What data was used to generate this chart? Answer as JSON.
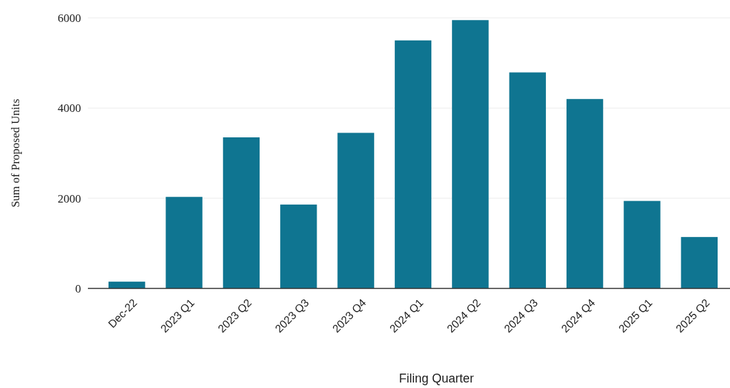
{
  "chart_data": {
    "type": "bar",
    "xlabel": "Filing Quarter",
    "ylabel": "Sum of Proposed Units",
    "categories": [
      "Dec-22",
      "2023 Q1",
      "2023 Q2",
      "2023 Q3",
      "2023 Q4",
      "2024 Q1",
      "2024 Q2",
      "2024 Q3",
      "2024 Q4",
      "2025 Q1",
      "2025 Q2"
    ],
    "values": [
      150,
      2030,
      3350,
      1860,
      3450,
      5500,
      5950,
      4790,
      4200,
      1940,
      1140
    ],
    "color": "#0f7591",
    "ylim": [
      0,
      6000
    ],
    "yticks": [
      0,
      2000,
      4000,
      6000
    ],
    "grid": "y"
  }
}
